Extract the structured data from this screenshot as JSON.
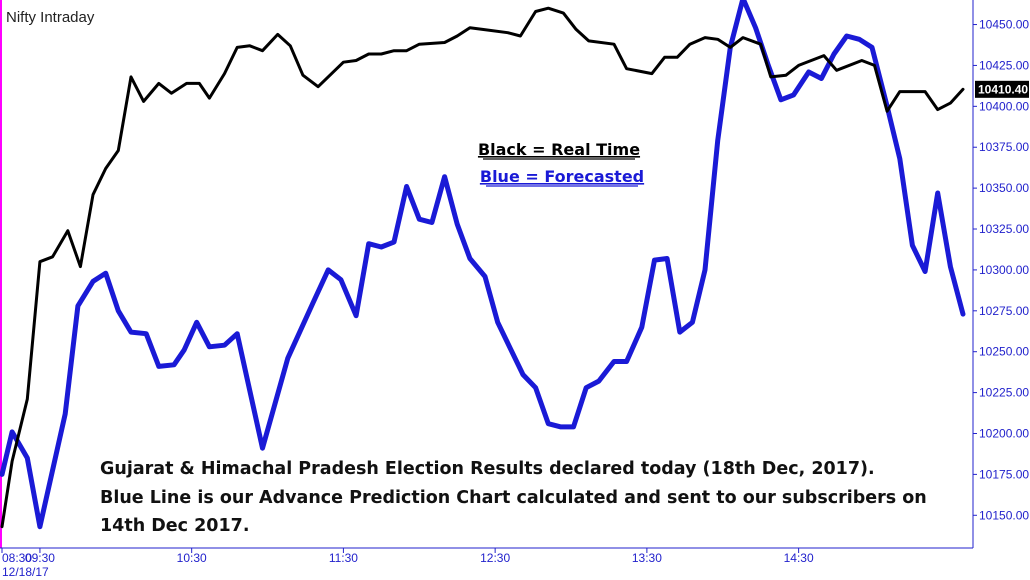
{
  "chart_data": {
    "type": "line",
    "title": "Nifty Intraday",
    "legend": [
      "Black = Real Time",
      "Blue = Forecasted"
    ],
    "legend_placement": "center-top",
    "colors": {
      "real_time": "#000000",
      "forecasted": "#1a1ad6",
      "axis": "#2222cc",
      "left_edge": "#ff00ff"
    },
    "ylim": [
      10130,
      10465
    ],
    "y_ticks": [
      "10150.00",
      "10175.00",
      "10200.00",
      "10225.00",
      "10250.00",
      "10275.00",
      "10300.00",
      "10325.00",
      "10350.00",
      "10375.00",
      "10400.00",
      "10425.00",
      "10450.00"
    ],
    "x_ticks": [
      {
        "label": "08:30",
        "sub": "12/18/17",
        "t": 0
      },
      {
        "label": "09:30",
        "t": 15
      },
      {
        "label": "10:30",
        "t": 75
      },
      {
        "label": "11:30",
        "t": 135
      },
      {
        "label": "12:30",
        "t": 195
      },
      {
        "label": "13:30",
        "t": 255
      },
      {
        "label": "14:30",
        "t": 315
      }
    ],
    "x_range": [
      0,
      380
    ],
    "last_value": "10410.40",
    "series": [
      {
        "key": "real_time",
        "points": [
          [
            0,
            10143
          ],
          [
            4,
            10183
          ],
          [
            10,
            10221
          ],
          [
            15,
            10305
          ],
          [
            20,
            10308
          ],
          [
            26,
            10324
          ],
          [
            31,
            10302
          ],
          [
            36,
            10346
          ],
          [
            41,
            10362
          ],
          [
            46,
            10373
          ],
          [
            51,
            10418
          ],
          [
            56,
            10403
          ],
          [
            62,
            10414
          ],
          [
            67,
            10408
          ],
          [
            73,
            10414
          ],
          [
            78,
            10414
          ],
          [
            82,
            10405
          ],
          [
            88,
            10420
          ],
          [
            93,
            10436
          ],
          [
            98,
            10437
          ],
          [
            103,
            10434
          ],
          [
            109,
            10444
          ],
          [
            114,
            10437
          ],
          [
            119,
            10419
          ],
          [
            125,
            10412
          ],
          [
            135,
            10427
          ],
          [
            140,
            10428
          ],
          [
            145,
            10432
          ],
          [
            150,
            10432
          ],
          [
            155,
            10434
          ],
          [
            160,
            10434
          ],
          [
            165,
            10438
          ],
          [
            175,
            10439
          ],
          [
            180,
            10443
          ],
          [
            185,
            10448
          ],
          [
            190,
            10447
          ],
          [
            200,
            10445
          ],
          [
            205,
            10443
          ],
          [
            211,
            10458
          ],
          [
            216,
            10460
          ],
          [
            222,
            10457
          ],
          [
            227,
            10447
          ],
          [
            232,
            10440
          ],
          [
            242,
            10438
          ],
          [
            247,
            10423
          ],
          [
            257,
            10420
          ],
          [
            262,
            10430
          ],
          [
            267,
            10430
          ],
          [
            272,
            10438
          ],
          [
            278,
            10442
          ],
          [
            283,
            10441
          ],
          [
            288,
            10436
          ],
          [
            293,
            10442
          ],
          [
            300,
            10438
          ],
          [
            304,
            10418
          ],
          [
            310,
            10419
          ],
          [
            315,
            10425
          ],
          [
            325,
            10431
          ],
          [
            330,
            10422
          ],
          [
            340,
            10428
          ],
          [
            345,
            10425
          ],
          [
            350,
            10397
          ],
          [
            355,
            10409
          ],
          [
            365,
            10409
          ],
          [
            370,
            10398
          ],
          [
            375,
            10402
          ],
          [
            380,
            10410.4
          ]
        ]
      },
      {
        "key": "forecasted",
        "points": [
          [
            0,
            10175
          ],
          [
            4,
            10201
          ],
          [
            10,
            10185
          ],
          [
            15,
            10143
          ],
          [
            25,
            10212
          ],
          [
            30,
            10278
          ],
          [
            36,
            10293
          ],
          [
            41,
            10298
          ],
          [
            46,
            10275
          ],
          [
            51,
            10262
          ],
          [
            57,
            10261
          ],
          [
            62,
            10241
          ],
          [
            68,
            10242
          ],
          [
            72,
            10251
          ],
          [
            77,
            10268
          ],
          [
            82,
            10253
          ],
          [
            88,
            10254
          ],
          [
            93,
            10261
          ],
          [
            103,
            10191
          ],
          [
            113,
            10246
          ],
          [
            123,
            10280
          ],
          [
            129,
            10300
          ],
          [
            134,
            10294
          ],
          [
            140,
            10272
          ],
          [
            145,
            10316
          ],
          [
            150,
            10314
          ],
          [
            155,
            10317
          ],
          [
            160,
            10351
          ],
          [
            165,
            10331
          ],
          [
            170,
            10329
          ],
          [
            175,
            10357
          ],
          [
            180,
            10328
          ],
          [
            185,
            10307
          ],
          [
            191,
            10296
          ],
          [
            196,
            10268
          ],
          [
            201,
            10252
          ],
          [
            206,
            10236
          ],
          [
            211,
            10228
          ],
          [
            216,
            10206
          ],
          [
            221,
            10204
          ],
          [
            226,
            10204
          ],
          [
            231,
            10228
          ],
          [
            236,
            10232
          ],
          [
            242,
            10244
          ],
          [
            247,
            10244
          ],
          [
            253,
            10265
          ],
          [
            258,
            10306
          ],
          [
            263,
            10307
          ],
          [
            268,
            10262
          ],
          [
            273,
            10268
          ],
          [
            278,
            10300
          ],
          [
            283,
            10379
          ],
          [
            288,
            10436
          ],
          [
            293,
            10466
          ],
          [
            298,
            10448
          ],
          [
            303,
            10425
          ],
          [
            308,
            10404
          ],
          [
            313,
            10407
          ],
          [
            319,
            10421
          ],
          [
            324,
            10417
          ],
          [
            329,
            10432
          ],
          [
            334,
            10443
          ],
          [
            339,
            10441
          ],
          [
            344,
            10436
          ],
          [
            350,
            10400
          ],
          [
            355,
            10368
          ],
          [
            360,
            10315
          ],
          [
            365,
            10299
          ],
          [
            370,
            10347
          ],
          [
            375,
            10302
          ],
          [
            380,
            10273
          ]
        ]
      }
    ]
  },
  "annotation": {
    "line1": "Gujarat & Himachal Pradesh Election Results declared today (18th Dec, 2017).",
    "line2": "Blue Line is our Advance Prediction Chart calculated and sent to our subscribers on",
    "line3": "14th Dec 2017."
  }
}
